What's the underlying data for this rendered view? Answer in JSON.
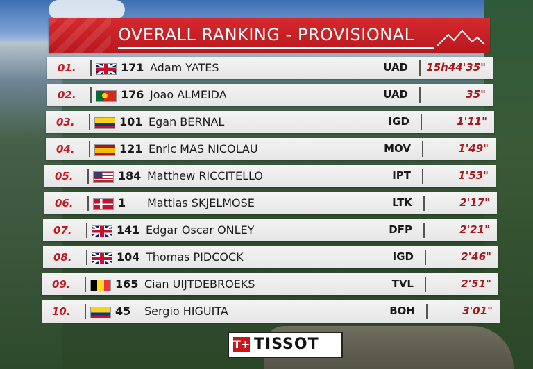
{
  "header": {
    "title": "OVERALL RANKING - PROVISIONAL",
    "icon": "mountain-icon"
  },
  "colors": {
    "accent_red": "#c11b22",
    "header_red": "#d52a2e",
    "row_bg": "#efefef"
  },
  "rows": [
    {
      "pos": "01.",
      "flag": "gb",
      "num": "171",
      "name": "Adam YATES",
      "team": "UAD",
      "time": "15h44'35\""
    },
    {
      "pos": "02.",
      "flag": "pt",
      "num": "176",
      "name": "Joao ALMEIDA",
      "team": "UAD",
      "time": "35\""
    },
    {
      "pos": "03.",
      "flag": "co",
      "num": "101",
      "name": "Egan BERNAL",
      "team": "IGD",
      "time": "1'11\""
    },
    {
      "pos": "04.",
      "flag": "es",
      "num": "121",
      "name": "Enric MAS NICOLAU",
      "team": "MOV",
      "time": "1'49\""
    },
    {
      "pos": "05.",
      "flag": "us",
      "num": "184",
      "name": "Matthew RICCITELLO",
      "team": "IPT",
      "time": "1'53\""
    },
    {
      "pos": "06.",
      "flag": "dk",
      "num": "1",
      "name": "Mattias SKJELMOSE",
      "team": "LTK",
      "time": "2'17\""
    },
    {
      "pos": "07.",
      "flag": "gb",
      "num": "141",
      "name": "Edgar Oscar ONLEY",
      "team": "DFP",
      "time": "2'21\""
    },
    {
      "pos": "08.",
      "flag": "gb",
      "num": "104",
      "name": "Thomas PIDCOCK",
      "team": "IGD",
      "time": "2'46\""
    },
    {
      "pos": "09.",
      "flag": "be",
      "num": "165",
      "name": "Cian UIJTDEBROEKS",
      "team": "TVL",
      "time": "2'51\""
    },
    {
      "pos": "10.",
      "flag": "co",
      "num": "45",
      "name": "Sergio HIGUITA",
      "team": "BOH",
      "time": "3'01\""
    }
  ],
  "sponsor": {
    "text": "TISSOT",
    "mark": "T+"
  }
}
